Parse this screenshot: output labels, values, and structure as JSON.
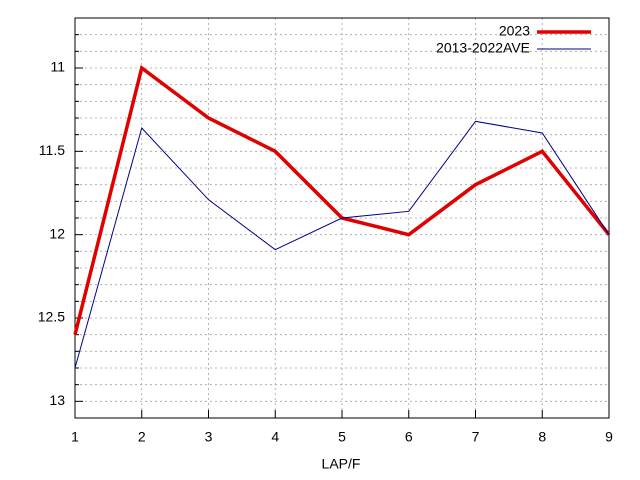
{
  "chart_data": {
    "type": "line",
    "xlabel": "LAP/F",
    "x": [
      1,
      2,
      3,
      4,
      5,
      6,
      7,
      8,
      9
    ],
    "series": [
      {
        "name": "2023",
        "color": "#e00000",
        "values": [
          12.6,
          11.0,
          11.3,
          11.5,
          11.9,
          12.0,
          11.7,
          11.5,
          12.0
        ]
      },
      {
        "name": "2013-2022AVE",
        "color": "#00008b",
        "values": [
          12.8,
          11.36,
          11.79,
          12.09,
          11.9,
          11.86,
          11.32,
          11.39,
          12.0
        ]
      }
    ],
    "xlim": [
      1,
      9
    ],
    "xticks": [
      1,
      2,
      3,
      4,
      5,
      6,
      7,
      8,
      9
    ],
    "ylim": [
      13.1,
      10.7
    ],
    "yticks": [
      11,
      11.5,
      12,
      12.5,
      13
    ],
    "yminorticks": [
      10.8,
      10.9,
      11.1,
      11.2,
      11.3,
      11.4,
      11.6,
      11.7,
      11.8,
      11.9,
      12.1,
      12.2,
      12.3,
      12.4,
      12.6,
      12.7,
      12.8,
      12.9
    ],
    "grid": true,
    "legend": "top-right"
  }
}
